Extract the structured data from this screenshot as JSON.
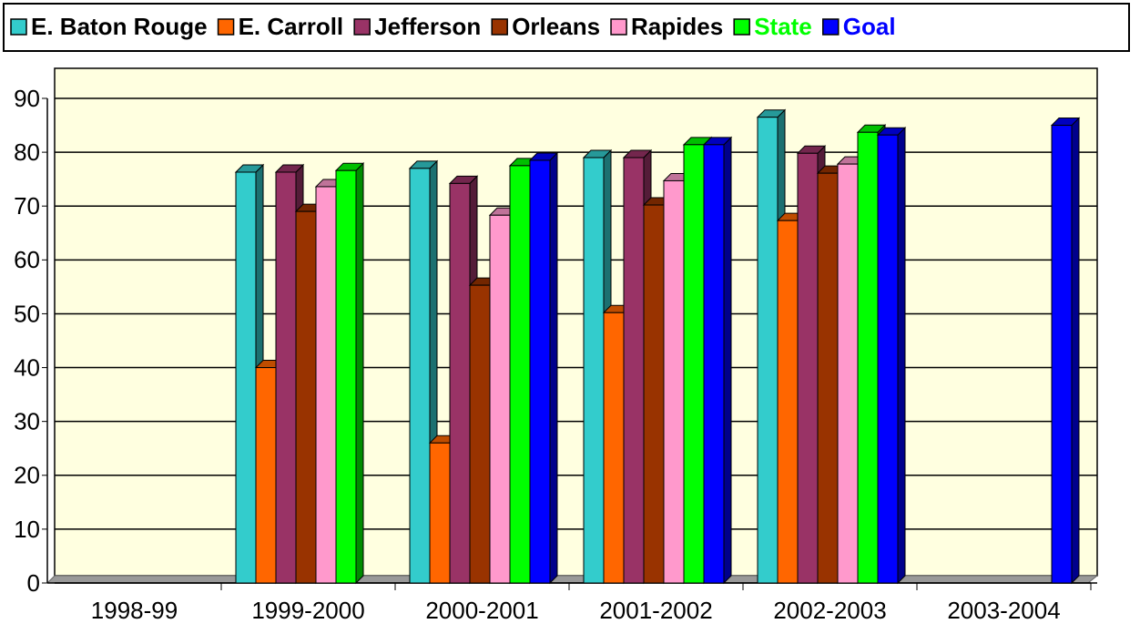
{
  "chart_data": {
    "type": "bar3d",
    "categories": [
      "1998-99",
      "1999-2000",
      "2000-2001",
      "2001-2002",
      "2002-2003",
      "2003-2004"
    ],
    "series": [
      {
        "name": "E. Baton Rouge",
        "color": "#33CCCC",
        "label_color": "#000000",
        "values": [
          null,
          76.3,
          77,
          79,
          86.5,
          null
        ]
      },
      {
        "name": "E. Carroll",
        "color": "#FF6600",
        "label_color": "#000000",
        "values": [
          null,
          40,
          26,
          50.2,
          67.3,
          null
        ]
      },
      {
        "name": "Jefferson",
        "color": "#993366",
        "label_color": "#000000",
        "values": [
          null,
          76.3,
          74.2,
          79,
          79.8,
          null
        ]
      },
      {
        "name": "Orleans",
        "color": "#993300",
        "label_color": "#000000",
        "values": [
          null,
          69,
          55.3,
          70.2,
          76.1,
          null
        ]
      },
      {
        "name": "Rapides",
        "color": "#FF99CC",
        "label_color": "#000000",
        "values": [
          null,
          73.6,
          68.3,
          74.7,
          77.8,
          null
        ]
      },
      {
        "name": "State",
        "color": "#00FF00",
        "label_color": "#00FF00",
        "values": [
          null,
          76.6,
          77.5,
          81.4,
          83.7,
          null
        ]
      },
      {
        "name": "Goal",
        "color": "#0000FF",
        "label_color": "#0000FF",
        "values": [
          null,
          null,
          78.5,
          81.4,
          83.2,
          85
        ]
      }
    ],
    "ylim": [
      0,
      90
    ],
    "yticks": [
      0,
      10,
      20,
      30,
      40,
      50,
      60,
      70,
      80,
      90
    ],
    "grid": true,
    "legend": "top"
  }
}
